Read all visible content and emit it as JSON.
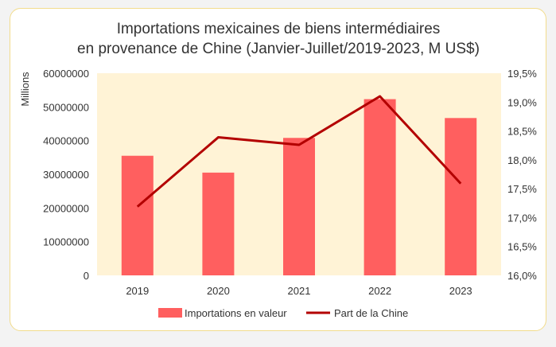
{
  "chart_data": {
    "type": "bar+line",
    "title_lines": [
      "Importations mexicaines de biens intermédiaires",
      "en provenance de Chine (Janvier-Juillet/2019-2023, M US$)"
    ],
    "categories": [
      "2019",
      "2020",
      "2021",
      "2022",
      "2023"
    ],
    "ylabel_left": "Millions",
    "ylim_left": [
      0,
      60000000
    ],
    "yticks_left": [
      "0",
      "10000000",
      "20000000",
      "30000000",
      "40000000",
      "50000000",
      "60000000"
    ],
    "ylim_right": [
      16.0,
      19.5
    ],
    "yticks_right": [
      "16,0%",
      "16,5%",
      "17,0%",
      "17,5%",
      "18,0%",
      "18,5%",
      "19,0%",
      "19,5%"
    ],
    "series": [
      {
        "name": "Importations en valeur",
        "type": "bar",
        "axis": "left",
        "color": "#ff5f5f",
        "values": [
          35500000,
          30500000,
          40800000,
          52300000,
          46700000
        ]
      },
      {
        "name": "Part de la Chine",
        "type": "line",
        "axis": "right",
        "color": "#b30000",
        "values": [
          17.19,
          18.39,
          18.26,
          19.1,
          17.59
        ]
      }
    ],
    "plot_background": "#fff3d6",
    "grid": false,
    "legend_position": "bottom"
  }
}
